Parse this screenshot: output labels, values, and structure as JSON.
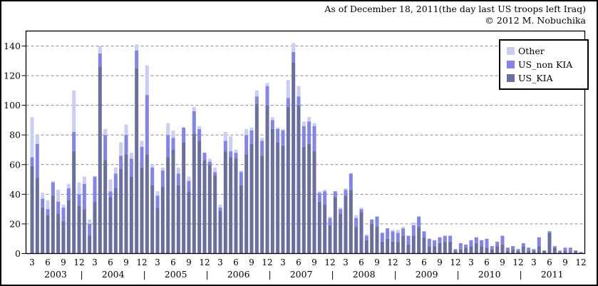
{
  "page": {
    "title_line1": "As of December 18, 2011(the day last US troops left Iraq)",
    "title_line2": "© 2012 M. Nobuchika"
  },
  "legend": {
    "items": [
      {
        "label": "Other",
        "color": "#cbcdf4"
      },
      {
        "label": "US_non KIA",
        "color": "#8185e8"
      },
      {
        "label": "US_KIA",
        "color": "#6b6f9f"
      }
    ]
  },
  "chart_data": {
    "type": "bar",
    "stacked": true,
    "title": "As of December 18, 2011(the day last US troops left Iraq)",
    "subtitle": "© 2012 M. Nobuchika",
    "legend_position": "top-right-inside",
    "grid": "horizontal-dashed",
    "y_axis": {
      "min": 0,
      "max": 150,
      "tick_interval": 20,
      "ticks": [
        0,
        20,
        40,
        60,
        80,
        100,
        120,
        140
      ]
    },
    "x_axis": {
      "month_tick_labels": [
        "3",
        "6",
        "9",
        "12"
      ],
      "year_labels": [
        "2003",
        "2004",
        "2005",
        "2006",
        "2007",
        "2008",
        "2009",
        "2010",
        "2011"
      ],
      "separator": "|"
    },
    "categories": [
      "2003-03",
      "2003-04",
      "2003-05",
      "2003-06",
      "2003-07",
      "2003-08",
      "2003-09",
      "2003-10",
      "2003-11",
      "2003-12",
      "2004-01",
      "2004-02",
      "2004-03",
      "2004-04",
      "2004-05",
      "2004-06",
      "2004-07",
      "2004-08",
      "2004-09",
      "2004-10",
      "2004-11",
      "2004-12",
      "2005-01",
      "2005-02",
      "2005-03",
      "2005-04",
      "2005-05",
      "2005-06",
      "2005-07",
      "2005-08",
      "2005-09",
      "2005-10",
      "2005-11",
      "2005-12",
      "2006-01",
      "2006-02",
      "2006-03",
      "2006-04",
      "2006-05",
      "2006-06",
      "2006-07",
      "2006-08",
      "2006-09",
      "2006-10",
      "2006-11",
      "2006-12",
      "2007-01",
      "2007-02",
      "2007-03",
      "2007-04",
      "2007-05",
      "2007-06",
      "2007-07",
      "2007-08",
      "2007-09",
      "2007-10",
      "2007-11",
      "2007-12",
      "2008-01",
      "2008-02",
      "2008-03",
      "2008-04",
      "2008-05",
      "2008-06",
      "2008-07",
      "2008-08",
      "2008-09",
      "2008-10",
      "2008-11",
      "2008-12",
      "2009-01",
      "2009-02",
      "2009-03",
      "2009-04",
      "2009-05",
      "2009-06",
      "2009-07",
      "2009-08",
      "2009-09",
      "2009-10",
      "2009-11",
      "2009-12",
      "2010-01",
      "2010-02",
      "2010-03",
      "2010-04",
      "2010-05",
      "2010-06",
      "2010-07",
      "2010-08",
      "2010-09",
      "2010-10",
      "2010-11",
      "2010-12",
      "2011-01",
      "2011-02",
      "2011-03",
      "2011-04",
      "2011-05",
      "2011-06",
      "2011-07",
      "2011-08",
      "2011-09",
      "2011-10",
      "2011-11",
      "2011-12"
    ],
    "series": [
      {
        "name": "US_KIA",
        "color": "#6b6f9f",
        "values": [
          59,
          51,
          31,
          26,
          39,
          27,
          22,
          36,
          69,
          32,
          30,
          12,
          35,
          126,
          63,
          38,
          44,
          57,
          67,
          52,
          125,
          58,
          67,
          46,
          31,
          45,
          65,
          70,
          46,
          75,
          42,
          81,
          76,
          63,
          60,
          53,
          29,
          69,
          65,
          64,
          46,
          67,
          74,
          101,
          66,
          100,
          84,
          75,
          73,
          99,
          129,
          100,
          72,
          74,
          69,
          35,
          33,
          19,
          38,
          27,
          39,
          43,
          18,
          28,
          9,
          20,
          18,
          8,
          10,
          8,
          8,
          12,
          6,
          12,
          18,
          11,
          5,
          5,
          7,
          8,
          8,
          2,
          3,
          4,
          5,
          7,
          5,
          4,
          3,
          5,
          6,
          2,
          3,
          2,
          5,
          2,
          2,
          5,
          2,
          14,
          4,
          1,
          2,
          1,
          2,
          1
        ]
      },
      {
        "name": "US_non KIA",
        "color": "#8185e8",
        "values": [
          6,
          23,
          6,
          4,
          9,
          8,
          9,
          8,
          13,
          8,
          17,
          8,
          17,
          9,
          17,
          4,
          10,
          9,
          13,
          12,
          12,
          14,
          40,
          12,
          8,
          11,
          15,
          8,
          8,
          10,
          7,
          15,
          8,
          5,
          2,
          2,
          2,
          7,
          4,
          4,
          9,
          13,
          9,
          5,
          10,
          13,
          6,
          9,
          10,
          6,
          7,
          6,
          14,
          15,
          17,
          6,
          9,
          5,
          4,
          3,
          4,
          11,
          6,
          2,
          3,
          3,
          7,
          6,
          7,
          7,
          6,
          5,
          6,
          7,
          7,
          4,
          5,
          4,
          4,
          4,
          4,
          1,
          4,
          2,
          4,
          4,
          4,
          6,
          2,
          3,
          6,
          2,
          2,
          1,
          2,
          2,
          1,
          6,
          0,
          1,
          1,
          1,
          2,
          3,
          0,
          0
        ]
      },
      {
        "name": "Other",
        "color": "#cbcdf4",
        "values": [
          27,
          6,
          4,
          6,
          1,
          8,
          2,
          3,
          28,
          8,
          5,
          3,
          0,
          5,
          4,
          8,
          4,
          9,
          7,
          4,
          4,
          4,
          20,
          2,
          3,
          2,
          8,
          5,
          4,
          0,
          3,
          3,
          2,
          0,
          2,
          3,
          2,
          6,
          10,
          2,
          1,
          4,
          2,
          4,
          2,
          2,
          2,
          1,
          1,
          12,
          6,
          7,
          3,
          3,
          2,
          1,
          1,
          1,
          0,
          1,
          1,
          0,
          2,
          1,
          1,
          0,
          0,
          0,
          0,
          1,
          2,
          1,
          0,
          2,
          0,
          0,
          0,
          0,
          0,
          0,
          0,
          0,
          0,
          0,
          0,
          0,
          0,
          0,
          0,
          0,
          0,
          0,
          0,
          0,
          0,
          0,
          0,
          0,
          0,
          0,
          0,
          0,
          0,
          0,
          0,
          0
        ]
      }
    ]
  }
}
